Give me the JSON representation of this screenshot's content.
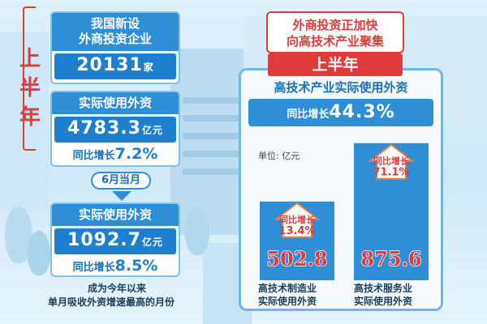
{
  "colors": {
    "blue": "#2f8fd6",
    "dark_blue": "#1f7fcf",
    "red": "#e03a3a",
    "orange": "#f07a3a"
  },
  "side_label": [
    "上",
    "半",
    "年"
  ],
  "left": {
    "card1": {
      "title_line1": "我国新设",
      "title_line2": "外商投资企业",
      "value": "20131",
      "unit": "家"
    },
    "card2": {
      "title": "实际使用外资",
      "value": "4783.3",
      "unit": "亿元",
      "growth_label": "同比增长",
      "growth_value": "7.2%"
    },
    "month_tag": "6月当月",
    "card3": {
      "title": "实际使用外资",
      "value": "1092.7",
      "unit": "亿元",
      "growth_label": "同比增长",
      "growth_value": "8.5%"
    },
    "note_line1": "成为今年以来",
    "note_line2": "单月吸收外资增速最高的月份"
  },
  "right": {
    "title_line1": "外商投资正加快",
    "title_line2": "向高技术产业聚集",
    "badge": "上半年",
    "panel_title": "高技术产业实际使用外资",
    "growth_label": "同比增长",
    "growth_value": "44.3%",
    "unit_label": "单位: 亿元"
  },
  "chart_data": {
    "type": "bar",
    "categories": [
      "高技术制造业实际使用外资",
      "高技术服务业实际使用外资"
    ],
    "category_lines": [
      [
        "高技术制造业",
        "实际使用外资"
      ],
      [
        "高技术服务业",
        "实际使用外资"
      ]
    ],
    "values": [
      502.8,
      875.6
    ],
    "growth_labels": [
      "同比增长",
      "同比增长"
    ],
    "growth_values": [
      "13.4%",
      "71.1%"
    ],
    "ylabel": "单位: 亿元",
    "ylim": [
      0,
      900
    ]
  }
}
